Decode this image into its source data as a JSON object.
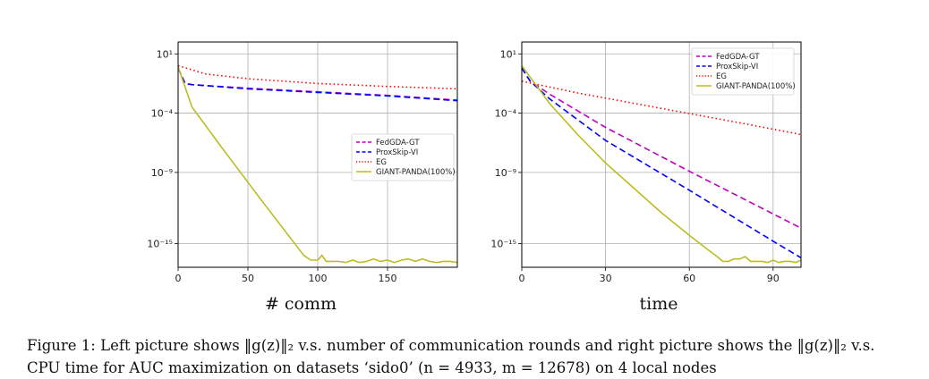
{
  "caption": {
    "line1": "Figure 1: Left picture shows ‖g(z)‖₂ v.s. number of communication rounds and right picture shows the ‖g(z)‖₂ v.s.",
    "line2": "CPU time for AUC maximization on datasets ‘sido0’ (n = 4933, m = 12678) on 4 local nodes"
  },
  "chart_data": [
    {
      "type": "line",
      "xlabel": "# comm",
      "ylabel": "",
      "yscale": "log",
      "xlim": [
        0,
        200
      ],
      "ylim_log10": [
        -17,
        2
      ],
      "xticks": [
        0,
        50,
        100,
        150
      ],
      "yticks_log10": [
        1,
        -4,
        -9,
        -15
      ],
      "ytick_labels": [
        "10¹",
        "10⁻⁴",
        "10⁻⁹",
        "10⁻¹⁵"
      ],
      "grid": true,
      "legend": "center-right",
      "series": [
        {
          "name": "FedGDA-GT",
          "color": "#bf00bf",
          "dash": "7,4",
          "x": [
            0,
            5,
            10,
            50,
            100,
            150,
            200
          ],
          "log10_y": [
            -0.2,
            -1.5,
            -1.6,
            -1.9,
            -2.2,
            -2.5,
            -2.9
          ]
        },
        {
          "name": "ProxSkip-VI",
          "color": "#0000ff",
          "dash": "7,4",
          "x": [
            0,
            5,
            10,
            50,
            100,
            150,
            200
          ],
          "log10_y": [
            -0.2,
            -1.5,
            -1.6,
            -1.95,
            -2.25,
            -2.55,
            -2.95
          ]
        },
        {
          "name": "EG",
          "color": "#ff0000",
          "dash": "1.5,3",
          "x": [
            0,
            20,
            50,
            100,
            150,
            200
          ],
          "log10_y": [
            0.0,
            -0.7,
            -1.1,
            -1.5,
            -1.75,
            -1.95
          ]
        },
        {
          "name": "GIANT-PANDA(100%)",
          "color": "#bcbd22",
          "dash": "",
          "x": [
            0,
            10,
            30,
            60,
            90,
            95,
            100,
            103,
            106,
            110,
            115,
            120,
            125,
            130,
            135,
            140,
            145,
            150,
            155,
            160,
            165,
            170,
            175,
            180,
            185,
            190,
            195,
            200
          ],
          "log10_y": [
            -0.1,
            -3.5,
            -6.7,
            -11.4,
            -16.0,
            -16.4,
            -16.4,
            -16.0,
            -16.5,
            -16.5,
            -16.5,
            -16.6,
            -16.4,
            -16.6,
            -16.5,
            -16.3,
            -16.5,
            -16.4,
            -16.6,
            -16.4,
            -16.3,
            -16.5,
            -16.3,
            -16.5,
            -16.6,
            -16.5,
            -16.5,
            -16.6
          ]
        }
      ]
    },
    {
      "type": "line",
      "xlabel": "time",
      "ylabel": "",
      "yscale": "log",
      "xlim": [
        0,
        100
      ],
      "ylim_log10": [
        -17,
        2
      ],
      "xticks": [
        0,
        30,
        60,
        90
      ],
      "yticks_log10": [
        1,
        -4,
        -9,
        -15
      ],
      "ytick_labels": [
        "10¹",
        "10⁻⁴",
        "10⁻⁹",
        "10⁻¹⁵"
      ],
      "grid": true,
      "legend": "top-right",
      "series": [
        {
          "name": "FedGDA-GT",
          "color": "#bf00bf",
          "dash": "7,4",
          "x": [
            0,
            3,
            10,
            30,
            60,
            90,
            100
          ],
          "log10_y": [
            -0.2,
            -1.3,
            -2.4,
            -5.2,
            -8.9,
            -12.5,
            -13.7
          ]
        },
        {
          "name": "ProxSkip-VI",
          "color": "#0000ff",
          "dash": "7,4",
          "x": [
            0,
            3,
            10,
            30,
            60,
            90,
            100
          ],
          "log10_y": [
            -0.2,
            -1.3,
            -2.8,
            -6.3,
            -10.5,
            -14.8,
            -16.2
          ]
        },
        {
          "name": "EG",
          "color": "#ff0000",
          "dash": "1.5,3",
          "x": [
            0,
            20,
            50,
            80,
            100
          ],
          "log10_y": [
            -1.3,
            -2.3,
            -3.6,
            -4.9,
            -5.8
          ]
        },
        {
          "name": "GIANT-PANDA(100%)",
          "color": "#bcbd22",
          "dash": "",
          "x": [
            0,
            5,
            10,
            20,
            30,
            40,
            50,
            60,
            66,
            70,
            72,
            74,
            76,
            78,
            80,
            82,
            84,
            86,
            88,
            90,
            92,
            94,
            96,
            98,
            100
          ],
          "log10_y": [
            0.0,
            -1.6,
            -3.2,
            -5.8,
            -8.2,
            -10.3,
            -12.4,
            -14.3,
            -15.4,
            -16.1,
            -16.5,
            -16.5,
            -16.3,
            -16.3,
            -16.1,
            -16.5,
            -16.5,
            -16.5,
            -16.6,
            -16.4,
            -16.6,
            -16.5,
            -16.5,
            -16.6,
            -16.4
          ]
        }
      ]
    }
  ]
}
